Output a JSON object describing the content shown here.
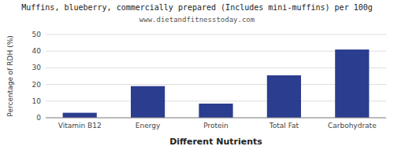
{
  "chart_data": {
    "type": "bar",
    "title": "Muffins, blueberry, commercially prepared (Includes mini-muffins) per 100g",
    "subtitle": "www.dietandfitnesstoday.com",
    "xlabel": "Different Nutrients",
    "ylabel": "Percentage of RDH (%)",
    "categories": [
      "Vitamin B12",
      "Energy",
      "Protein",
      "Total Fat",
      "Carbohydrate"
    ],
    "values": [
      3.0,
      19.0,
      8.5,
      25.5,
      41.0
    ],
    "color": "#2b3d8f",
    "ylim": [
      0,
      50
    ],
    "yticks": [
      0,
      10,
      20,
      30,
      40,
      50
    ],
    "grid": true
  }
}
